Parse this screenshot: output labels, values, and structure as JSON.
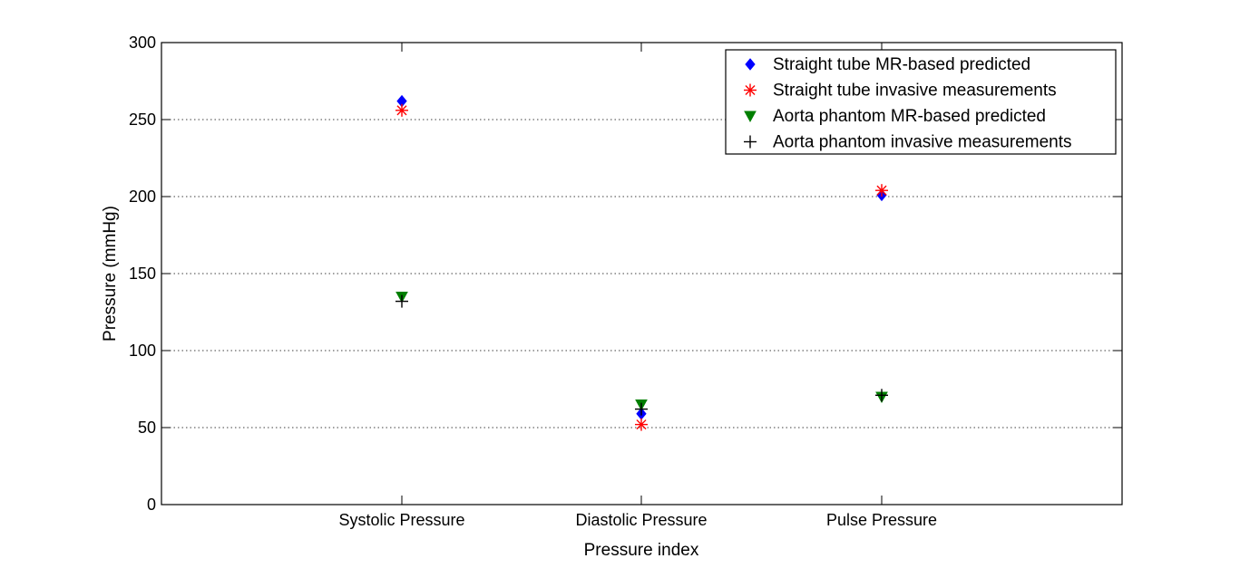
{
  "chart_data": {
    "type": "scatter",
    "title": "",
    "xlabel": "Pressure index",
    "ylabel": "Pressure (mmHg)",
    "categories": [
      "Systolic Pressure",
      "Diastolic Pressure",
      "Pulse Pressure"
    ],
    "ylim": [
      0,
      300
    ],
    "yticks": [
      0,
      50,
      100,
      150,
      200,
      250,
      300
    ],
    "grid": "y-dotted",
    "legend_position": "top-right",
    "series": [
      {
        "name": "Straight tube MR-based predicted",
        "marker": "diamond",
        "color": "#0000ff",
        "values": [
          262,
          59,
          201
        ]
      },
      {
        "name": "Straight tube invasive measurements",
        "marker": "asterisk",
        "color": "#ff0000",
        "values": [
          256,
          52,
          204
        ]
      },
      {
        "name": "Aorta phantom MR-based predicted",
        "marker": "triangle-down",
        "color": "#007f00",
        "values": [
          135,
          65,
          70
        ]
      },
      {
        "name": "Aorta phantom invasive measurements",
        "marker": "plus",
        "color": "#000000",
        "values": [
          132,
          62,
          71
        ]
      }
    ]
  }
}
